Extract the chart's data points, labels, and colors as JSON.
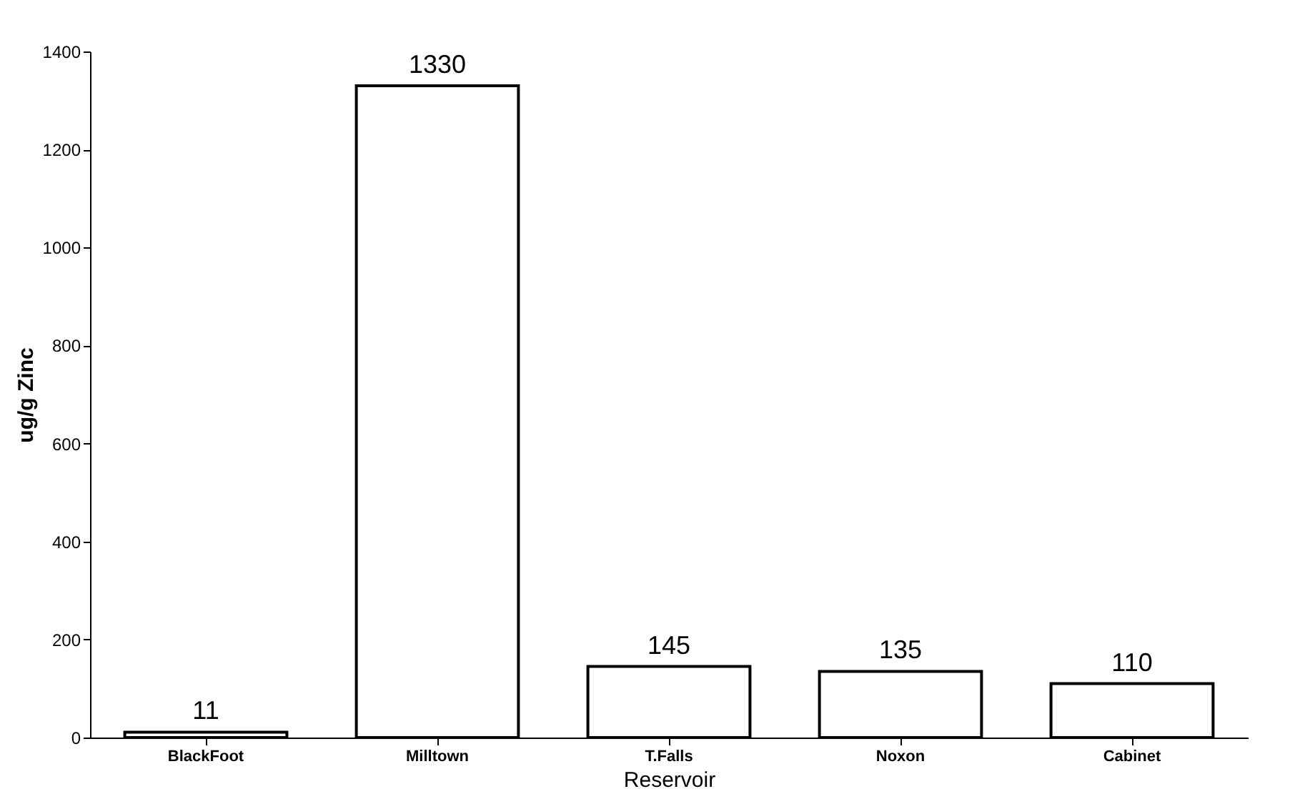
{
  "chart_data": {
    "type": "bar",
    "xlabel": "Reservoir",
    "ylabel": "ug/g Zinc",
    "categories": [
      "BlackFoot",
      "Milltown",
      "T.Falls",
      "Noxon",
      "Cabinet"
    ],
    "values": [
      11,
      1330,
      145,
      135,
      110
    ],
    "color": "#ffffff",
    "ylim": [
      0,
      1400
    ],
    "yticks": [
      0,
      200,
      400,
      600,
      800,
      1000,
      1200,
      1400
    ],
    "data_labels": true,
    "grid": false
  }
}
